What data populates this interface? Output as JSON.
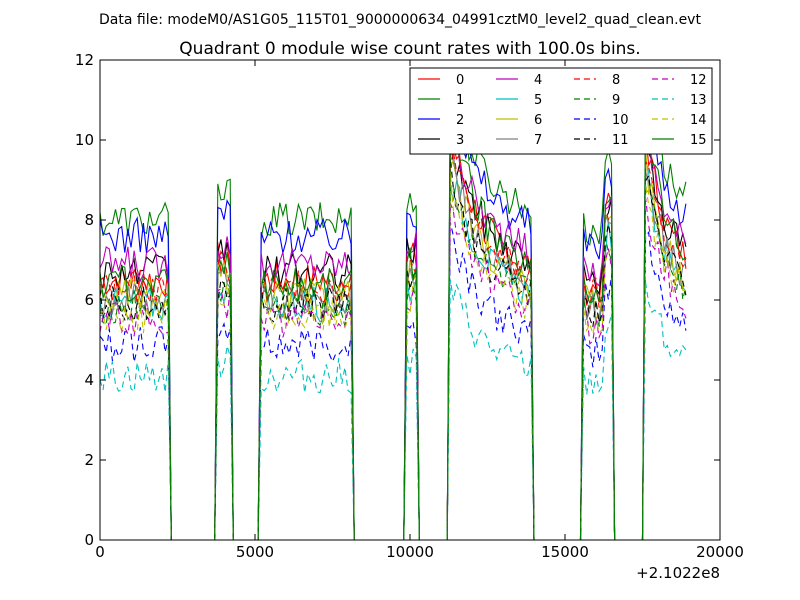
{
  "chart_data": {
    "type": "line",
    "suptitle": "Data file: modeM0/AS1G05_115T01_9000000634_04991cztM0_level2_quad_clean.evt",
    "title": "Quadrant 0 module wise count rates with 100.0s bins.",
    "xlabel": "",
    "ylabel": "",
    "x_offset_label": "+2.1022e8",
    "xlim": [
      0,
      20000
    ],
    "ylim": [
      0,
      12
    ],
    "x_ticks": [
      0,
      5000,
      10000,
      15000,
      20000
    ],
    "y_ticks": [
      0,
      2,
      4,
      6,
      8,
      10,
      12
    ],
    "grid": false,
    "legend_placement": "top-right",
    "bin_seconds": 100,
    "active_intervals": [
      [
        0,
        2200
      ],
      [
        3800,
        4200
      ],
      [
        5200,
        8100
      ],
      [
        9900,
        10200
      ],
      [
        11300,
        13900
      ],
      [
        15600,
        16500
      ],
      [
        17600,
        18900
      ]
    ],
    "series": [
      {
        "name": "0",
        "color": "#ff0000",
        "dash": "solid",
        "mean": 6.5,
        "burst": 10.2
      },
      {
        "name": "1",
        "color": "#008000",
        "dash": "solid",
        "mean": 8.0,
        "burst": 11.3
      },
      {
        "name": "2",
        "color": "#0000ff",
        "dash": "solid",
        "mean": 7.6,
        "burst": 11.0
      },
      {
        "name": "3",
        "color": "#000000",
        "dash": "solid",
        "mean": 6.7,
        "burst": 10.0
      },
      {
        "name": "4",
        "color": "#bf00bf",
        "dash": "solid",
        "mean": 6.9,
        "burst": 10.4
      },
      {
        "name": "5",
        "color": "#00bfbf",
        "dash": "solid",
        "mean": 5.9,
        "burst": 9.2
      },
      {
        "name": "6",
        "color": "#bfbf00",
        "dash": "solid",
        "mean": 6.1,
        "burst": 9.4
      },
      {
        "name": "7",
        "color": "#808080",
        "dash": "solid",
        "mean": 6.0,
        "burst": 9.6
      },
      {
        "name": "8",
        "color": "#ff0000",
        "dash": "dashed",
        "mean": 6.3,
        "burst": 9.8
      },
      {
        "name": "9",
        "color": "#008000",
        "dash": "dashed",
        "mean": 5.8,
        "burst": 9.0
      },
      {
        "name": "10",
        "color": "#0000ff",
        "dash": "dashed",
        "mean": 4.9,
        "burst": 7.8
      },
      {
        "name": "11",
        "color": "#000000",
        "dash": "dashed",
        "mean": 5.9,
        "burst": 9.1
      },
      {
        "name": "12",
        "color": "#bf00bf",
        "dash": "dashed",
        "mean": 5.5,
        "burst": 8.6
      },
      {
        "name": "13",
        "color": "#00bfbf",
        "dash": "dashed",
        "mean": 4.1,
        "burst": 6.4
      },
      {
        "name": "14",
        "color": "#bfbf00",
        "dash": "dashed",
        "mean": 5.6,
        "burst": 8.8
      },
      {
        "name": "15",
        "color": "#008000",
        "dash": "solid",
        "mean": 6.4,
        "burst": 10.9
      }
    ]
  }
}
